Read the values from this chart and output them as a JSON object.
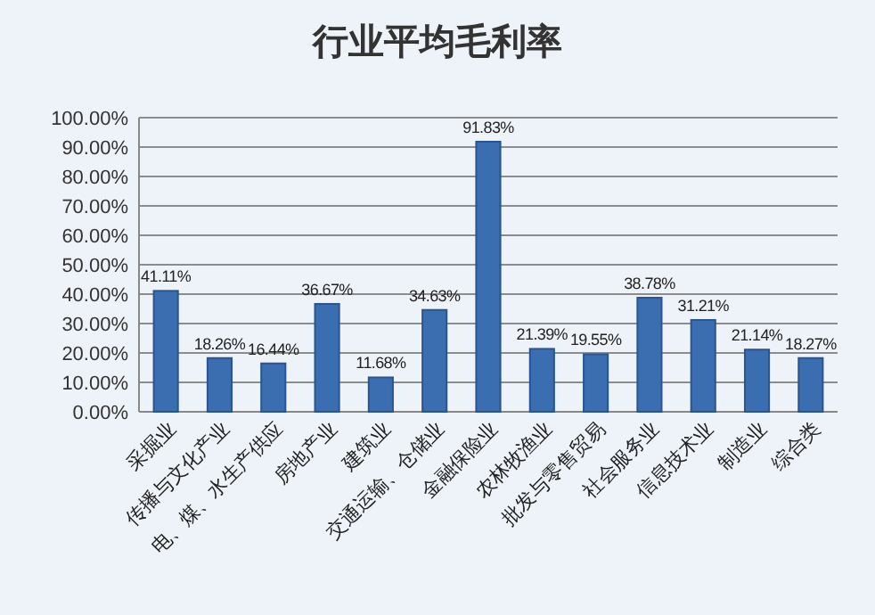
{
  "chart_data": {
    "type": "bar",
    "title": "行业平均毛利率",
    "categories": [
      "采掘业",
      "传播与文化产业",
      "电、煤、水生产供应",
      "房地产业",
      "建筑业",
      "交通运输、仓储业",
      "金融保险业",
      "农林牧渔业",
      "批发与零售贸易",
      "社会服务业",
      "信息技术业",
      "制造业",
      "综合类"
    ],
    "values": [
      41.11,
      18.26,
      16.44,
      36.67,
      11.68,
      34.63,
      91.83,
      21.39,
      19.55,
      38.78,
      31.21,
      21.14,
      18.27
    ],
    "value_labels": [
      "41.11%",
      "18.26%",
      "16.44%",
      "36.67%",
      "11.68%",
      "34.63%",
      "91.83%",
      "21.39%",
      "19.55%",
      "38.78%",
      "31.21%",
      "21.14%",
      "18.27%"
    ],
    "color": "#3a6eb0",
    "grid": "y",
    "ylim": [
      0,
      100
    ],
    "yticks": [
      {
        "value": 0,
        "label": "0.00%"
      },
      {
        "value": 10,
        "label": "10.00%"
      },
      {
        "value": 20,
        "label": "20.00%"
      },
      {
        "value": 30,
        "label": "30.00%"
      },
      {
        "value": 40,
        "label": "40.00%"
      },
      {
        "value": 50,
        "label": "50.00%"
      },
      {
        "value": 60,
        "label": "60.00%"
      },
      {
        "value": 70,
        "label": "70.00%"
      },
      {
        "value": 80,
        "label": "80.00%"
      },
      {
        "value": 90,
        "label": "90.00%"
      },
      {
        "value": 100,
        "label": "100.00%"
      }
    ]
  }
}
